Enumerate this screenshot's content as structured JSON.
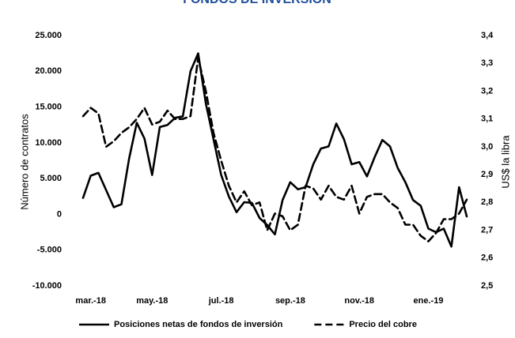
{
  "chart_data": {
    "type": "line",
    "title": "FONDOS DE INVERSIÓN",
    "y_label": "Número de contratos",
    "y2_label": "US$ la libra",
    "categories": [
      null,
      "mar.-18",
      null,
      null,
      null,
      null,
      null,
      null,
      null,
      "may.-18",
      null,
      null,
      null,
      null,
      null,
      null,
      null,
      null,
      "jul.-18",
      null,
      null,
      null,
      null,
      null,
      null,
      null,
      null,
      "sep.-18",
      null,
      null,
      null,
      null,
      null,
      null,
      null,
      null,
      "nov.-18",
      null,
      null,
      null,
      null,
      null,
      null,
      null,
      null,
      "ene.-19",
      null,
      null,
      null,
      null,
      null
    ],
    "series": [
      {
        "name": "Posiciones netas de fondos de inversión",
        "color": "#000000",
        "dash": false,
        "axis": "y",
        "values": [
          2300,
          5400,
          5800,
          3400,
          1000,
          1400,
          7800,
          12800,
          10600,
          5500,
          12200,
          12500,
          13500,
          13700,
          20000,
          22500,
          15500,
          10500,
          5500,
          2500,
          300,
          1700,
          1600,
          -500,
          -1500,
          -2800,
          2000,
          4500,
          3500,
          3800,
          7000,
          9200,
          9500,
          12700,
          10500,
          7000,
          7300,
          5300,
          8000,
          10400,
          9500,
          6500,
          4500,
          2000,
          1200,
          -2000,
          -2500,
          -2000,
          -4500,
          3800,
          -300
        ]
      },
      {
        "name": "Precio del cobre",
        "color": "#000000",
        "dash": true,
        "axis": "y2",
        "values": [
          3.11,
          3.14,
          3.12,
          3.0,
          3.02,
          3.05,
          3.07,
          3.1,
          3.14,
          3.08,
          3.09,
          3.13,
          3.1,
          3.1,
          3.11,
          3.32,
          3.2,
          3.05,
          2.95,
          2.86,
          2.8,
          2.84,
          2.79,
          2.8,
          2.7,
          2.76,
          2.75,
          2.7,
          2.72,
          2.86,
          2.85,
          2.81,
          2.86,
          2.82,
          2.81,
          2.86,
          2.76,
          2.82,
          2.83,
          2.83,
          2.8,
          2.78,
          2.72,
          2.72,
          2.68,
          2.66,
          2.69,
          2.74,
          2.74,
          2.76,
          2.81
        ]
      }
    ],
    "ylim": [
      -10000,
      25000
    ],
    "yticks": [
      {
        "value": -10000,
        "label": "-10.000"
      },
      {
        "value": -5000,
        "label": "-5.000"
      },
      0,
      {
        "value": 5000,
        "label": "5.000"
      },
      {
        "value": 10000,
        "label": "10.000"
      },
      {
        "value": 15000,
        "label": "15.000"
      },
      {
        "value": 20000,
        "label": "20.000"
      },
      {
        "value": 25000,
        "label": "25.000"
      }
    ],
    "y2lim": [
      2.5,
      3.4
    ],
    "y2ticks": [
      {
        "value": 2.5,
        "label": "2,5"
      },
      {
        "value": 2.6,
        "label": "2,6"
      },
      {
        "value": 2.7,
        "label": "2,7"
      },
      {
        "value": 2.8,
        "label": "2,8"
      },
      {
        "value": 2.9,
        "label": "2,9"
      },
      {
        "value": 3.0,
        "label": "3,0"
      },
      {
        "value": 3.1,
        "label": "3,1"
      },
      {
        "value": 3.2,
        "label": "3,2"
      },
      {
        "value": 3.3,
        "label": "3,3"
      },
      {
        "value": 3.4,
        "label": "3,4"
      }
    ],
    "grid": false,
    "legend": "bottom"
  }
}
